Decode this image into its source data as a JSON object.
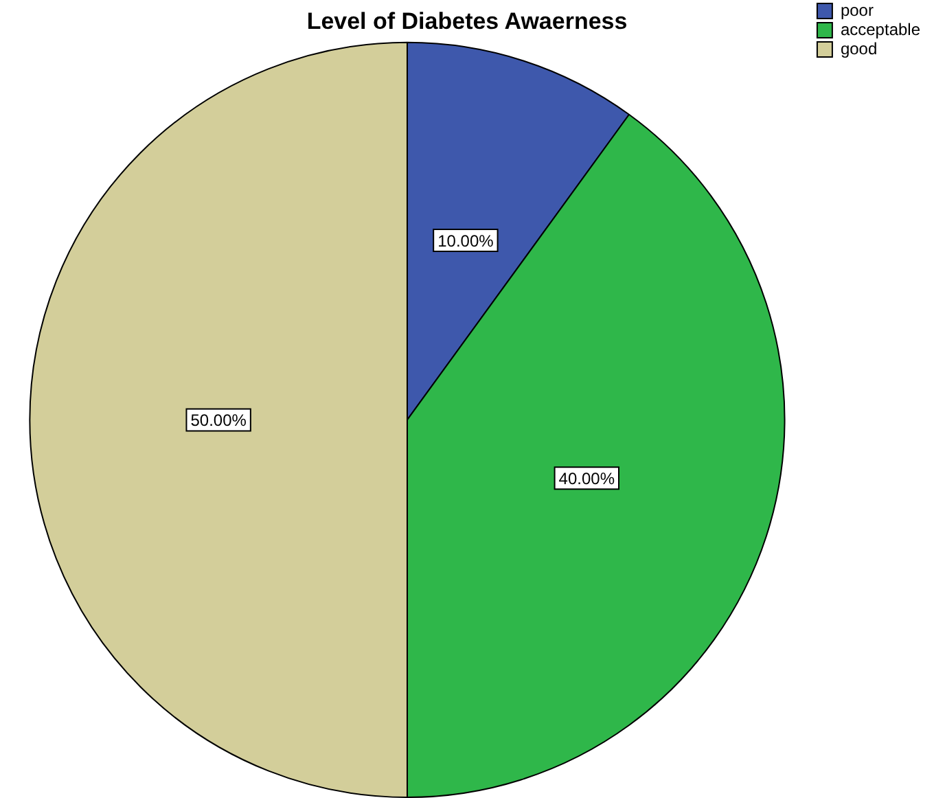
{
  "chart_data": {
    "type": "pie",
    "title": "Level of Diabetes Awaerness",
    "categories": [
      "poor",
      "acceptable",
      "good"
    ],
    "values": [
      10,
      40,
      50
    ],
    "colors": [
      "#3e58ac",
      "#2fb74a",
      "#d3ce9a"
    ],
    "value_labels": [
      "10.00%",
      "40.00%",
      "50.00%"
    ],
    "legend": "top right"
  }
}
